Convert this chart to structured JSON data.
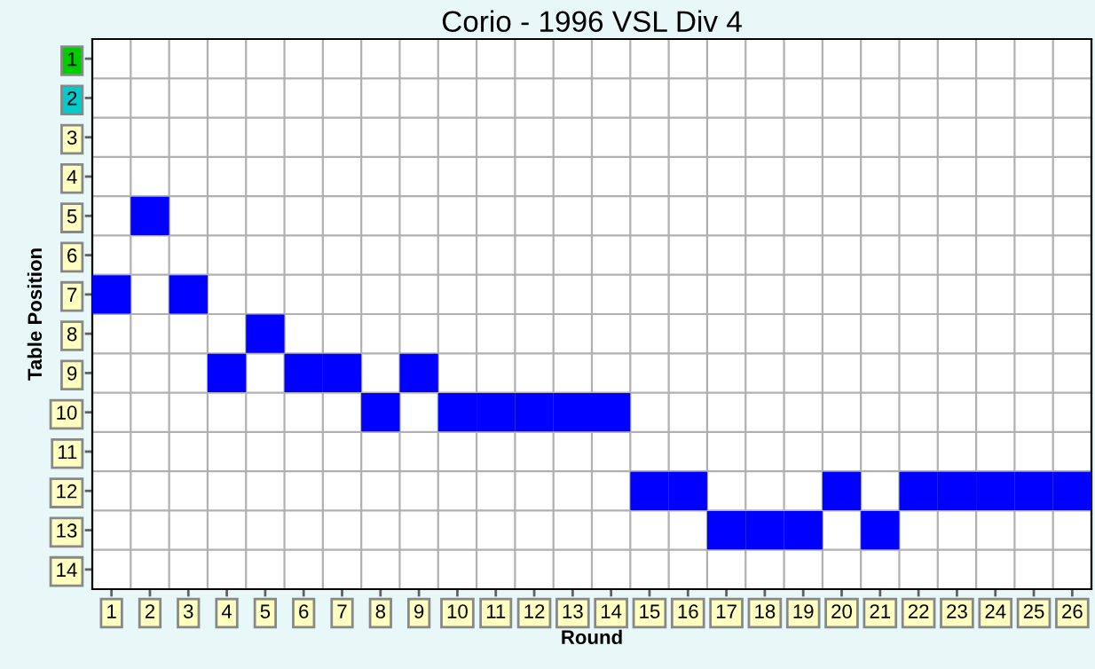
{
  "chart_data": {
    "type": "scatter",
    "title": "Corio - 1996 VSL Div 4",
    "xlabel": "Round",
    "ylabel": "Table Position",
    "categories": [
      "1",
      "2",
      "3",
      "4",
      "5",
      "6",
      "7",
      "8",
      "9",
      "10",
      "11",
      "12",
      "13",
      "14",
      "15",
      "16",
      "17",
      "18",
      "19",
      "20",
      "21",
      "22",
      "23",
      "24",
      "25",
      "26"
    ],
    "series": [
      {
        "color": "#0000ff",
        "values": [
          7,
          5,
          7,
          9,
          8,
          9,
          9,
          10,
          9,
          10,
          10,
          10,
          10,
          10,
          12,
          12,
          13,
          13,
          13,
          12,
          13,
          12,
          12,
          12,
          12,
          12
        ]
      }
    ],
    "ylim": [
      14.5,
      0.5
    ],
    "yticks": [
      1,
      2,
      3,
      4,
      5,
      6,
      7,
      8,
      9,
      10,
      11,
      12,
      13,
      14
    ],
    "marker": "square",
    "grid": false,
    "legend": false
  }
}
